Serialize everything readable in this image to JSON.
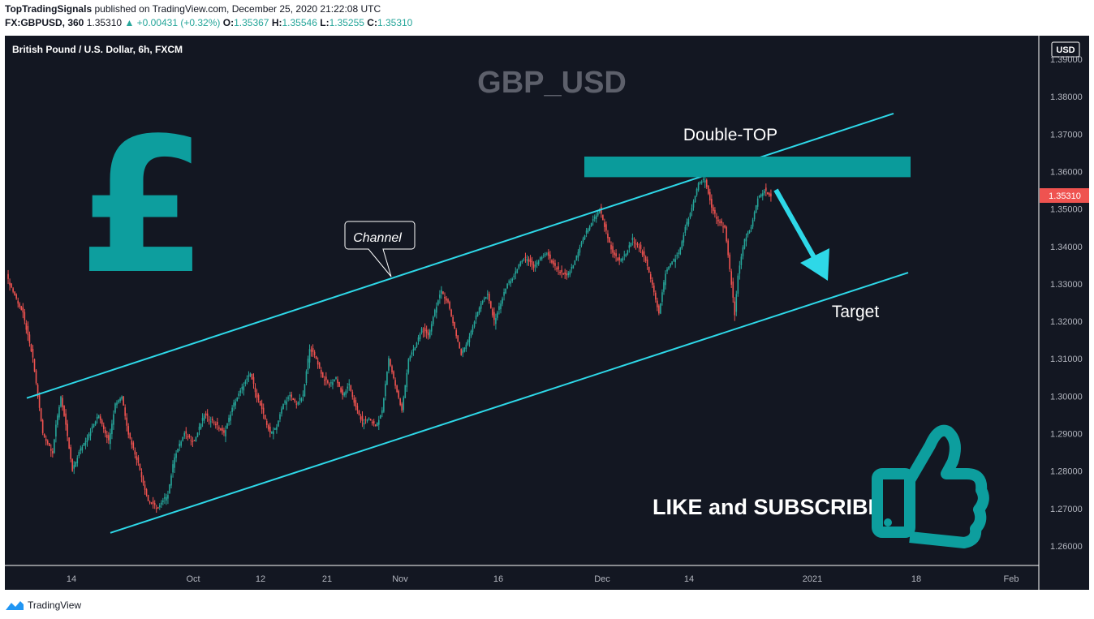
{
  "header": {
    "author": "TopTradingSignals",
    "published_text": "published on TradingView.com, December 25, 2020 21:22:08 UTC",
    "symbol_interval": "FX:GBPUSD, 360",
    "last": "1.35310",
    "change": "▲ +0.00431 (+0.32%)",
    "o_label": "O:",
    "o_value": "1.35367",
    "h_label": "H:",
    "h_value": "1.35546",
    "l_label": "L:",
    "l_value": "1.35255",
    "c_label": "C:",
    "c_value": "1.35310"
  },
  "chart": {
    "legend": "British Pound / U.S. Dollar, 6h, FXCM",
    "watermark": "GBP_USD",
    "currency": "USD",
    "price_ticks": [
      "1.39000",
      "1.38000",
      "1.37000",
      "1.36000",
      "1.35000",
      "1.34000",
      "1.33000",
      "1.32000",
      "1.31000",
      "1.30000",
      "1.29000",
      "1.28000",
      "1.27000",
      "1.26000"
    ],
    "current_price_label": "1.35310",
    "time_ticks": [
      "14",
      "Oct",
      "12",
      "21",
      "Nov",
      "16",
      "Dec",
      "14",
      "2021",
      "18",
      "Feb"
    ],
    "annotations": {
      "channel": "Channel",
      "double_top": "Double-TOP",
      "target": "Target",
      "cta": "LIKE and SUBSCRIBE"
    },
    "colors": {
      "background": "#131722",
      "up": "#26a69a",
      "down": "#ef5350",
      "channel": "#2ed8e8",
      "resistance": "#0a9b9b",
      "pound": "#0d9e9e"
    }
  },
  "footer": {
    "brand": "TradingView"
  },
  "chart_data": {
    "type": "candlestick",
    "symbol": "GBPUSD",
    "keypoints": [
      [
        0,
        1.332
      ],
      [
        4,
        1.328
      ],
      [
        10,
        1.322
      ],
      [
        16,
        1.31
      ],
      [
        22,
        1.29
      ],
      [
        28,
        1.285
      ],
      [
        30,
        1.292
      ],
      [
        33,
        1.3
      ],
      [
        36,
        1.292
      ],
      [
        40,
        1.28
      ],
      [
        44,
        1.285
      ],
      [
        50,
        1.29
      ],
      [
        56,
        1.295
      ],
      [
        62,
        1.288
      ],
      [
        66,
        1.298
      ],
      [
        70,
        1.3
      ],
      [
        74,
        1.29
      ],
      [
        80,
        1.282
      ],
      [
        86,
        1.272
      ],
      [
        92,
        1.27
      ],
      [
        98,
        1.274
      ],
      [
        102,
        1.284
      ],
      [
        108,
        1.29
      ],
      [
        114,
        1.288
      ],
      [
        120,
        1.295
      ],
      [
        126,
        1.293
      ],
      [
        132,
        1.29
      ],
      [
        138,
        1.298
      ],
      [
        144,
        1.303
      ],
      [
        148,
        1.306
      ],
      [
        152,
        1.3
      ],
      [
        156,
        1.295
      ],
      [
        160,
        1.29
      ],
      [
        164,
        1.292
      ],
      [
        168,
        1.298
      ],
      [
        172,
        1.3
      ],
      [
        176,
        1.298
      ],
      [
        180,
        1.3
      ],
      [
        184,
        1.313
      ],
      [
        188,
        1.31
      ],
      [
        192,
        1.305
      ],
      [
        196,
        1.303
      ],
      [
        200,
        1.305
      ],
      [
        204,
        1.3
      ],
      [
        208,
        1.303
      ],
      [
        212,
        1.297
      ],
      [
        216,
        1.293
      ],
      [
        220,
        1.294
      ],
      [
        224,
        1.292
      ],
      [
        228,
        1.296
      ],
      [
        232,
        1.31
      ],
      [
        236,
        1.303
      ],
      [
        240,
        1.296
      ],
      [
        244,
        1.31
      ],
      [
        248,
        1.313
      ],
      [
        252,
        1.318
      ],
      [
        256,
        1.316
      ],
      [
        260,
        1.323
      ],
      [
        264,
        1.328
      ],
      [
        268,
        1.325
      ],
      [
        272,
        1.318
      ],
      [
        276,
        1.311
      ],
      [
        280,
        1.315
      ],
      [
        284,
        1.32
      ],
      [
        288,
        1.325
      ],
      [
        292,
        1.327
      ],
      [
        296,
        1.32
      ],
      [
        300,
        1.325
      ],
      [
        304,
        1.33
      ],
      [
        308,
        1.332
      ],
      [
        312,
        1.336
      ],
      [
        316,
        1.337
      ],
      [
        320,
        1.334
      ],
      [
        324,
        1.337
      ],
      [
        328,
        1.338
      ],
      [
        332,
        1.335
      ],
      [
        336,
        1.333
      ],
      [
        340,
        1.332
      ],
      [
        344,
        1.335
      ],
      [
        348,
        1.34
      ],
      [
        352,
        1.344
      ],
      [
        356,
        1.347
      ],
      [
        360,
        1.35
      ],
      [
        364,
        1.344
      ],
      [
        368,
        1.338
      ],
      [
        372,
        1.336
      ],
      [
        376,
        1.338
      ],
      [
        380,
        1.342
      ],
      [
        384,
        1.34
      ],
      [
        388,
        1.336
      ],
      [
        392,
        1.33
      ],
      [
        396,
        1.322
      ],
      [
        400,
        1.333
      ],
      [
        404,
        1.336
      ],
      [
        408,
        1.338
      ],
      [
        412,
        1.345
      ],
      [
        416,
        1.35
      ],
      [
        420,
        1.357
      ],
      [
        424,
        1.358
      ],
      [
        428,
        1.35
      ],
      [
        432,
        1.347
      ],
      [
        436,
        1.345
      ],
      [
        440,
        1.33
      ],
      [
        442,
        1.322
      ],
      [
        444,
        1.332
      ],
      [
        448,
        1.342
      ],
      [
        452,
        1.345
      ],
      [
        456,
        1.353
      ],
      [
        460,
        1.355
      ],
      [
        464,
        1.353
      ]
    ],
    "ylim": [
      1.255,
      1.39
    ],
    "resistance_zone": [
      1.3585,
      1.364
    ],
    "channel_upper": [
      [
        1.2995,
        27
      ],
      [
        1.3755,
        545
      ]
    ],
    "channel_lower": [
      [
        1.2635,
        62
      ],
      [
        1.333,
        557
      ]
    ]
  }
}
